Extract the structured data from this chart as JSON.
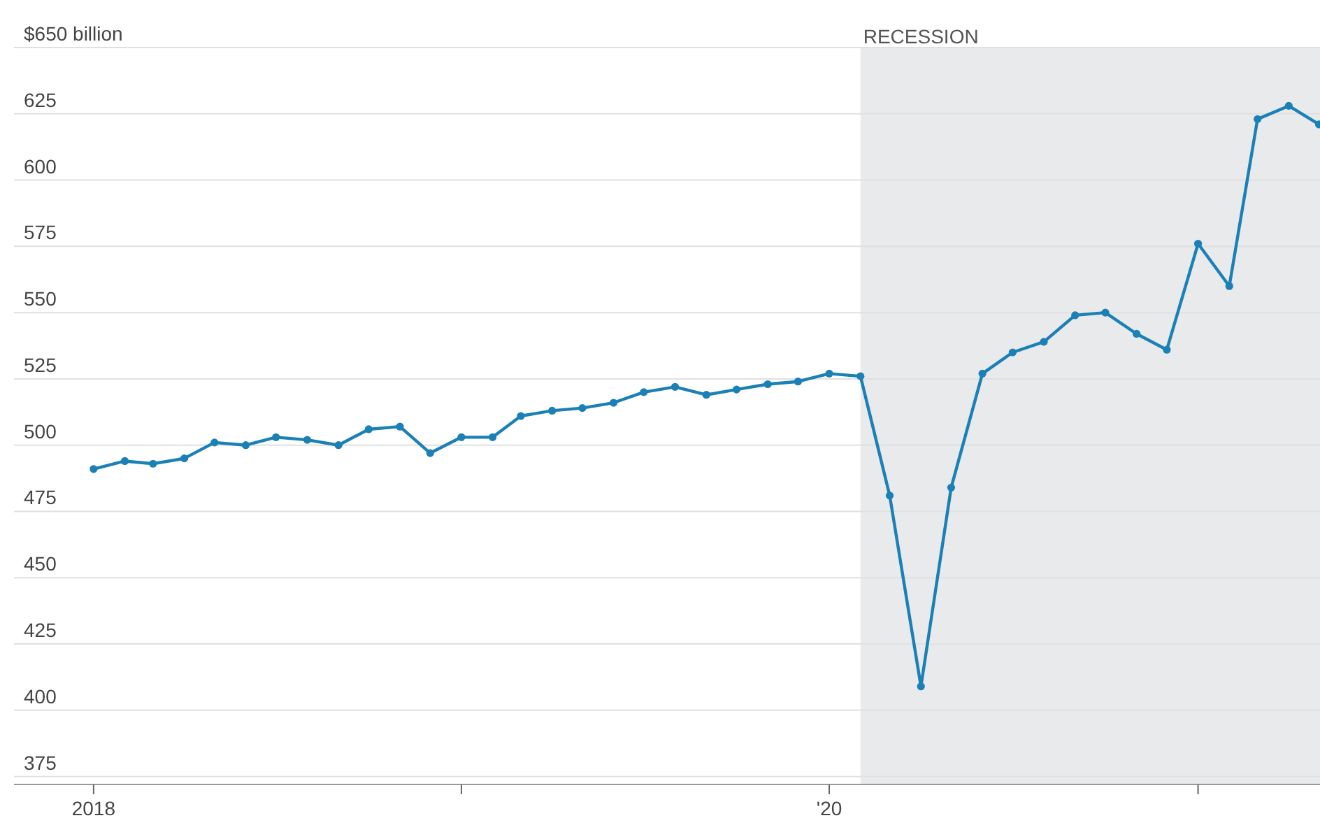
{
  "chart_data": {
    "type": "line",
    "x": [
      "2018-01",
      "2018-02",
      "2018-03",
      "2018-04",
      "2018-05",
      "2018-06",
      "2018-07",
      "2018-08",
      "2018-09",
      "2018-10",
      "2018-11",
      "2018-12",
      "2019-01",
      "2019-02",
      "2019-03",
      "2019-04",
      "2019-05",
      "2019-06",
      "2019-07",
      "2019-08",
      "2019-09",
      "2019-10",
      "2019-11",
      "2019-12",
      "2020-01",
      "2020-02",
      "2020-03",
      "2020-04",
      "2020-05",
      "2020-06",
      "2020-07",
      "2020-08",
      "2020-09",
      "2020-10",
      "2020-11",
      "2020-12",
      "2021-01",
      "2021-02",
      "2021-03",
      "2021-04",
      "2021-05"
    ],
    "series": [
      {
        "color": "#1a80b6",
        "values": [
          491,
          494,
          493,
          495,
          501,
          500,
          503,
          502,
          500,
          506,
          507,
          497,
          503,
          503,
          511,
          513,
          514,
          516,
          520,
          522,
          519,
          521,
          523,
          524,
          527,
          526,
          481,
          409,
          484,
          527,
          535,
          539,
          549,
          550,
          542,
          536,
          576,
          560,
          623,
          628,
          621
        ]
      }
    ],
    "xlim": [
      "2017-10-14",
      "2021-05-02"
    ],
    "xticks": [
      {
        "value": "2018-01",
        "label": "2018"
      },
      {
        "value": "2019-01",
        "label": null
      },
      {
        "value": "2020-01",
        "label": "'20"
      },
      {
        "value": "2021-01",
        "label": null
      }
    ],
    "ylim": [
      372,
      650
    ],
    "yticks": [
      375,
      400,
      425,
      450,
      475,
      500,
      525,
      550,
      575,
      600,
      625,
      {
        "value": 650,
        "label": "$650 billion"
      }
    ],
    "bands": [
      {
        "axis": "x",
        "from": "2020-02",
        "to": "2021-05-02",
        "label": "RECESSION",
        "color": "#e9eaec"
      }
    ],
    "grid": "y",
    "marker": "circle",
    "line_style": "solid"
  }
}
